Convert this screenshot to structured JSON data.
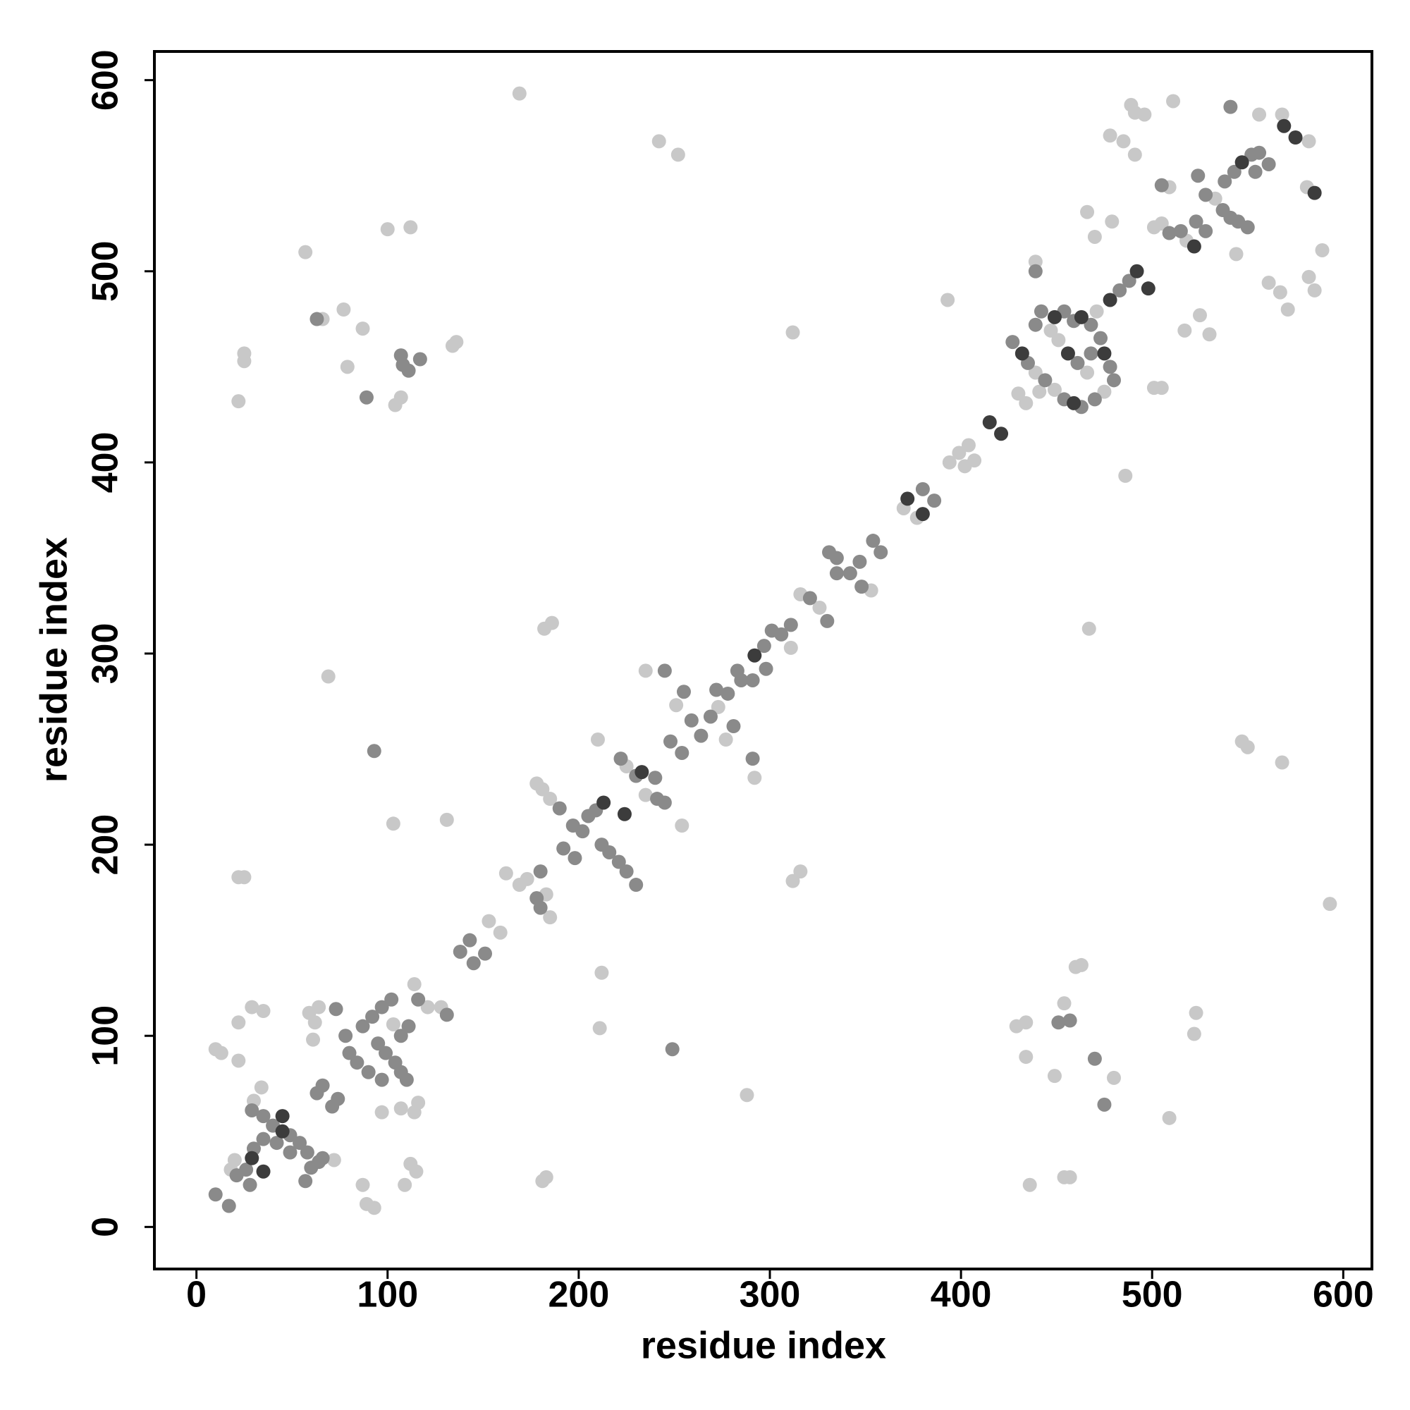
{
  "chart_data": {
    "type": "scatter",
    "xlabel": "residue index",
    "ylabel": "residue index",
    "xlim": [
      -22,
      615
    ],
    "ylim": [
      -22,
      615
    ],
    "xticks": [
      0,
      100,
      200,
      300,
      400,
      500,
      600
    ],
    "yticks": [
      0,
      100,
      200,
      300,
      400,
      500,
      600
    ],
    "grid": false,
    "series": [
      {
        "color": "#c8c8c8",
        "x": [
          169,
          242,
          252,
          57,
          100,
          112,
          25,
          25,
          22,
          66,
          77,
          87,
          79,
          107,
          104,
          134,
          136,
          69,
          22,
          25,
          103,
          131,
          182,
          186,
          210,
          235,
          254,
          181,
          183,
          288,
          212,
          211,
          312,
          393,
          467,
          312,
          316,
          292,
          486,
          429,
          434,
          434,
          436,
          454,
          460,
          463,
          449,
          480,
          454,
          457,
          509,
          522,
          523,
          593,
          547,
          550,
          568,
          489,
          511,
          491,
          496,
          478,
          485,
          491,
          466,
          470,
          479,
          439,
          509,
          501,
          505,
          517,
          525,
          530,
          544,
          561,
          567,
          571,
          582,
          585,
          589,
          582,
          568,
          556,
          18,
          20,
          34,
          30,
          22,
          22,
          29,
          35,
          10,
          13,
          72,
          121,
          128,
          114,
          107,
          116,
          114,
          109,
          112,
          115,
          87,
          89,
          93,
          97,
          59,
          64,
          62,
          61,
          103,
          153,
          159,
          162,
          169,
          173,
          183,
          185,
          178,
          181,
          185,
          225,
          235,
          251,
          273,
          277,
          311,
          316,
          326,
          353,
          370,
          377,
          394,
          399,
          404,
          402,
          407,
          439,
          449,
          430,
          434,
          441,
          475,
          466,
          451,
          447,
          471,
          501,
          505,
          518,
          533,
          581
        ],
        "values": [
          593,
          568,
          561,
          510,
          522,
          523,
          457,
          453,
          432,
          475,
          480,
          470,
          450,
          434,
          430,
          461,
          463,
          288,
          183,
          183,
          211,
          213,
          313,
          316,
          255,
          291,
          210,
          24,
          26,
          69,
          133,
          104,
          468,
          485,
          313,
          181,
          186,
          235,
          393,
          105,
          107,
          89,
          22,
          117,
          136,
          137,
          79,
          78,
          26,
          26,
          57,
          101,
          112,
          169,
          254,
          251,
          243,
          587,
          589,
          583,
          582,
          571,
          568,
          561,
          531,
          518,
          526,
          505,
          544,
          439,
          439,
          469,
          477,
          467,
          509,
          494,
          489,
          480,
          497,
          490,
          511,
          568,
          582,
          582,
          30,
          35,
          73,
          66,
          87,
          107,
          115,
          113,
          93,
          91,
          35,
          115,
          115,
          127,
          62,
          65,
          60,
          22,
          33,
          29,
          22,
          12,
          10,
          60,
          112,
          115,
          107,
          98,
          106,
          160,
          154,
          185,
          179,
          182,
          174,
          162,
          232,
          229,
          224,
          241,
          226,
          273,
          272,
          255,
          303,
          331,
          324,
          333,
          376,
          371,
          400,
          405,
          409,
          398,
          401,
          447,
          438,
          436,
          431,
          437,
          437,
          447,
          464,
          469,
          479,
          523,
          525,
          516,
          538,
          544
        ]
      },
      {
        "color": "#8a8a8a",
        "x": [
          63,
          89,
          107,
          117,
          108,
          111,
          93,
          245,
          249,
          291,
          451,
          457,
          470,
          475,
          439,
          505,
          541,
          10,
          17,
          29,
          35,
          40,
          49,
          54,
          58,
          49,
          42,
          35,
          30,
          26,
          21,
          28,
          57,
          60,
          64,
          66,
          78,
          87,
          92,
          97,
          102,
          95,
          99,
          104,
          107,
          110,
          84,
          80,
          90,
          97,
          107,
          111,
          116,
          131,
          63,
          66,
          74,
          71,
          73,
          138,
          143,
          145,
          151,
          178,
          180,
          180,
          190,
          197,
          202,
          212,
          216,
          221,
          225,
          230,
          192,
          198,
          205,
          209,
          222,
          230,
          240,
          241,
          245,
          248,
          255,
          254,
          259,
          264,
          269,
          281,
          272,
          278,
          283,
          285,
          291,
          297,
          301,
          306,
          311,
          298,
          321,
          330,
          331,
          335,
          335,
          342,
          347,
          348,
          354,
          358,
          380,
          386,
          427,
          435,
          444,
          454,
          463,
          439,
          442,
          454,
          459,
          468,
          473,
          478,
          480,
          470,
          461,
          468,
          483,
          488,
          509,
          515,
          523,
          528,
          524,
          528,
          537,
          541,
          545,
          550,
          538,
          543,
          552,
          556,
          561,
          554
        ],
        "values": [
          475,
          434,
          456,
          454,
          451,
          448,
          249,
          291,
          93,
          245,
          107,
          108,
          88,
          64,
          500,
          545,
          586,
          17,
          11,
          61,
          58,
          53,
          48,
          44,
          39,
          39,
          44,
          46,
          41,
          30,
          27,
          22,
          24,
          31,
          34,
          36,
          100,
          105,
          110,
          115,
          119,
          96,
          91,
          86,
          81,
          77,
          86,
          91,
          81,
          77,
          100,
          105,
          119,
          111,
          70,
          74,
          67,
          63,
          114,
          144,
          150,
          138,
          143,
          172,
          186,
          167,
          219,
          210,
          207,
          200,
          196,
          191,
          186,
          179,
          198,
          193,
          215,
          218,
          245,
          236,
          235,
          224,
          222,
          254,
          280,
          248,
          265,
          257,
          267,
          262,
          281,
          279,
          291,
          286,
          286,
          304,
          312,
          310,
          315,
          292,
          329,
          317,
          353,
          350,
          342,
          342,
          348,
          335,
          359,
          353,
          386,
          380,
          463,
          452,
          443,
          433,
          429,
          472,
          479,
          479,
          474,
          472,
          465,
          450,
          443,
          433,
          452,
          457,
          490,
          495,
          520,
          521,
          526,
          521,
          550,
          540,
          532,
          528,
          526,
          523,
          547,
          552,
          561,
          562,
          556,
          552
        ]
      },
      {
        "color": "#3c3c3c",
        "x": [
          29,
          45,
          35,
          45,
          213,
          224,
          233,
          292,
          372,
          380,
          415,
          421,
          432,
          459,
          449,
          463,
          475,
          456,
          478,
          492,
          498,
          522,
          547,
          569,
          575,
          585
        ],
        "values": [
          36,
          58,
          29,
          50,
          222,
          216,
          238,
          299,
          381,
          373,
          421,
          415,
          457,
          431,
          476,
          476,
          457,
          457,
          485,
          500,
          491,
          513,
          557,
          576,
          570,
          541
        ]
      }
    ]
  }
}
